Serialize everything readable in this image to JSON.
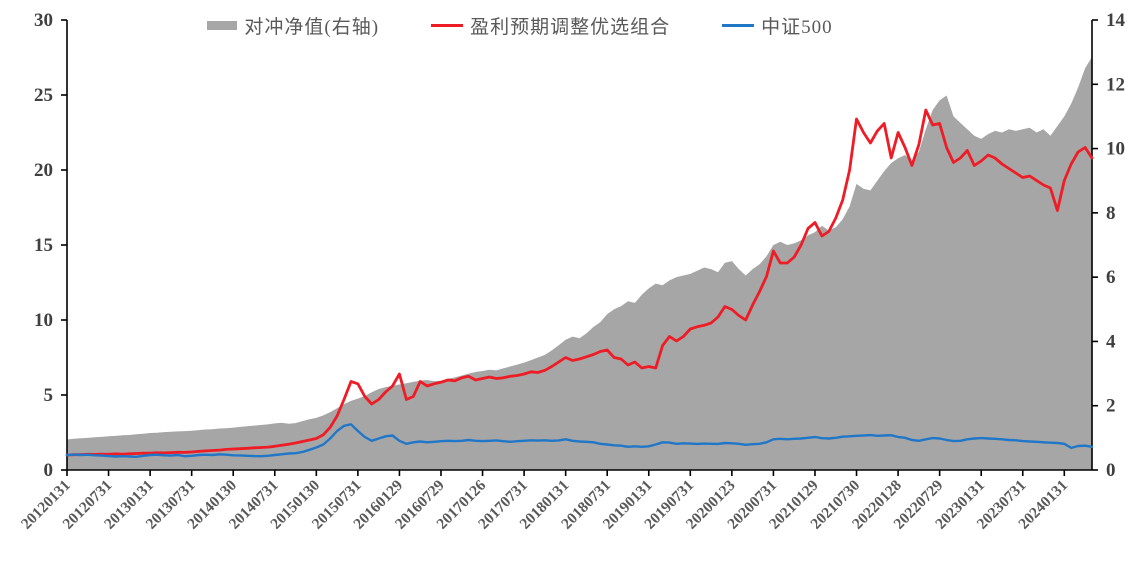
{
  "chart": {
    "legend": [
      {
        "label": "对冲净值(右轴)",
        "type": "area",
        "color": "#a6a6a6"
      },
      {
        "label": "盈利预期调整优选组合",
        "type": "line",
        "color": "#ee1c25"
      },
      {
        "label": "中证500",
        "type": "line",
        "color": "#2177c7"
      }
    ]
  },
  "chart_data": {
    "type": "area",
    "subtype": "combo-area-plus-two-lines",
    "title": "",
    "xlabel": "",
    "ylabel": "",
    "grid": false,
    "legend_position": "top-center",
    "left_axis": {
      "range": [
        0,
        30
      ],
      "ticks": [
        0,
        5,
        10,
        15,
        20,
        25,
        30
      ]
    },
    "right_axis": {
      "range": [
        0,
        14
      ],
      "ticks": [
        0,
        2,
        4,
        6,
        8,
        10,
        12,
        14
      ]
    },
    "x_tick_labels": [
      "20120131",
      "20120731",
      "20130131",
      "20130731",
      "20140130",
      "20140731",
      "20150130",
      "20150731",
      "20160129",
      "20160729",
      "20170126",
      "20170731",
      "20180131",
      "20180731",
      "20190131",
      "20190731",
      "20200123",
      "20200731",
      "20210129",
      "20210730",
      "20220128",
      "20220729",
      "20230131",
      "20230731",
      "20240131"
    ],
    "x_tick_month_index": [
      0,
      6,
      12,
      18,
      24,
      30,
      36,
      42,
      48,
      54,
      60,
      66,
      72,
      78,
      84,
      90,
      96,
      102,
      108,
      114,
      120,
      126,
      132,
      138,
      144
    ],
    "months_total": 149,
    "series": [
      {
        "name": "对冲净值(右轴)",
        "type": "area",
        "axis": "right",
        "color": "#a6a6a6",
        "values": [
          0.95,
          0.97,
          0.99,
          1.0,
          1.02,
          1.03,
          1.05,
          1.06,
          1.08,
          1.09,
          1.11,
          1.13,
          1.15,
          1.16,
          1.18,
          1.19,
          1.2,
          1.21,
          1.22,
          1.24,
          1.26,
          1.27,
          1.29,
          1.3,
          1.32,
          1.34,
          1.36,
          1.38,
          1.4,
          1.42,
          1.45,
          1.47,
          1.44,
          1.46,
          1.52,
          1.58,
          1.62,
          1.7,
          1.8,
          1.92,
          2.05,
          2.15,
          2.22,
          2.3,
          2.42,
          2.52,
          2.58,
          2.62,
          2.66,
          2.7,
          2.74,
          2.78,
          2.8,
          2.76,
          2.78,
          2.84,
          2.88,
          2.94,
          3.0,
          3.05,
          3.08,
          3.12,
          3.1,
          3.16,
          3.22,
          3.28,
          3.34,
          3.42,
          3.5,
          3.58,
          3.72,
          3.88,
          4.05,
          4.15,
          4.1,
          4.25,
          4.45,
          4.6,
          4.85,
          5.0,
          5.1,
          5.25,
          5.2,
          5.45,
          5.65,
          5.8,
          5.75,
          5.9,
          6.0,
          6.05,
          6.1,
          6.2,
          6.3,
          6.25,
          6.15,
          6.45,
          6.5,
          6.25,
          6.05,
          6.25,
          6.4,
          6.65,
          7.0,
          7.1,
          7.0,
          7.05,
          7.15,
          7.3,
          7.4,
          7.6,
          7.45,
          7.55,
          7.8,
          8.2,
          8.9,
          8.75,
          8.7,
          9.0,
          9.3,
          9.55,
          9.7,
          9.8,
          9.6,
          9.9,
          10.6,
          11.2,
          11.5,
          11.65,
          11.0,
          10.8,
          10.6,
          10.4,
          10.3,
          10.45,
          10.55,
          10.5,
          10.6,
          10.55,
          10.6,
          10.65,
          10.5,
          10.6,
          10.4,
          10.7,
          11.0,
          11.4,
          11.9,
          12.5,
          12.85
        ]
      },
      {
        "name": "盈利预期调整优选组合",
        "type": "line",
        "axis": "left",
        "color": "#ee1c25",
        "values": [
          1.0,
          1.02,
          1.03,
          1.05,
          1.04,
          1.06,
          1.05,
          1.07,
          1.06,
          1.08,
          1.1,
          1.12,
          1.13,
          1.15,
          1.14,
          1.16,
          1.18,
          1.17,
          1.2,
          1.24,
          1.27,
          1.3,
          1.33,
          1.37,
          1.4,
          1.42,
          1.45,
          1.48,
          1.5,
          1.53,
          1.58,
          1.65,
          1.72,
          1.8,
          1.9,
          2.0,
          2.1,
          2.35,
          2.85,
          3.6,
          4.7,
          5.9,
          5.75,
          4.9,
          4.4,
          4.7,
          5.2,
          5.6,
          6.4,
          4.7,
          4.9,
          5.9,
          5.6,
          5.75,
          5.85,
          6.0,
          5.95,
          6.15,
          6.25,
          6.0,
          6.1,
          6.2,
          6.1,
          6.15,
          6.25,
          6.3,
          6.4,
          6.55,
          6.5,
          6.65,
          6.9,
          7.2,
          7.5,
          7.3,
          7.4,
          7.55,
          7.7,
          7.9,
          8.0,
          7.5,
          7.4,
          7.0,
          7.2,
          6.8,
          6.9,
          6.8,
          8.3,
          8.9,
          8.6,
          8.9,
          9.4,
          9.55,
          9.65,
          9.8,
          10.2,
          10.9,
          10.7,
          10.3,
          10.0,
          11.0,
          11.9,
          12.9,
          14.6,
          13.8,
          13.8,
          14.2,
          15.0,
          16.1,
          16.5,
          15.6,
          15.9,
          16.8,
          18.0,
          20.0,
          23.4,
          22.5,
          21.8,
          22.6,
          23.1,
          20.8,
          22.5,
          21.5,
          20.3,
          21.7,
          24.0,
          23.0,
          23.1,
          21.5,
          20.5,
          20.8,
          21.3,
          20.3,
          20.6,
          21.0,
          20.8,
          20.4,
          20.1,
          19.8,
          19.5,
          19.6,
          19.3,
          19.0,
          18.8,
          17.3,
          19.3,
          20.4,
          21.2,
          21.5,
          20.8
        ]
      },
      {
        "name": "中证500",
        "type": "line",
        "axis": "left",
        "color": "#2177c7",
        "values": [
          1.0,
          1.03,
          1.0,
          1.02,
          0.98,
          0.96,
          0.93,
          0.9,
          0.92,
          0.9,
          0.88,
          0.95,
          1.0,
          1.02,
          0.98,
          0.96,
          1.0,
          0.92,
          0.95,
          1.0,
          1.02,
          1.0,
          1.05,
          1.02,
          0.98,
          0.97,
          0.95,
          0.93,
          0.92,
          0.95,
          1.0,
          1.05,
          1.1,
          1.12,
          1.2,
          1.35,
          1.5,
          1.7,
          2.1,
          2.6,
          2.95,
          3.05,
          2.6,
          2.2,
          1.95,
          2.1,
          2.25,
          2.3,
          1.95,
          1.75,
          1.85,
          1.9,
          1.85,
          1.88,
          1.92,
          1.95,
          1.93,
          1.95,
          2.0,
          1.95,
          1.93,
          1.95,
          1.97,
          1.92,
          1.88,
          1.92,
          1.95,
          1.98,
          1.96,
          1.98,
          1.95,
          1.97,
          2.05,
          1.95,
          1.9,
          1.88,
          1.85,
          1.75,
          1.7,
          1.65,
          1.62,
          1.55,
          1.58,
          1.55,
          1.58,
          1.7,
          1.85,
          1.83,
          1.75,
          1.78,
          1.76,
          1.74,
          1.76,
          1.75,
          1.74,
          1.8,
          1.78,
          1.75,
          1.68,
          1.72,
          1.75,
          1.85,
          2.05,
          2.08,
          2.05,
          2.08,
          2.1,
          2.15,
          2.2,
          2.12,
          2.1,
          2.15,
          2.22,
          2.25,
          2.28,
          2.3,
          2.33,
          2.28,
          2.3,
          2.32,
          2.2,
          2.15,
          2.0,
          1.95,
          2.05,
          2.13,
          2.1,
          2.0,
          1.93,
          1.95,
          2.05,
          2.1,
          2.13,
          2.1,
          2.08,
          2.05,
          2.0,
          1.98,
          1.93,
          1.9,
          1.88,
          1.85,
          1.82,
          1.8,
          1.75,
          1.47,
          1.6,
          1.62,
          1.55
        ]
      }
    ]
  }
}
